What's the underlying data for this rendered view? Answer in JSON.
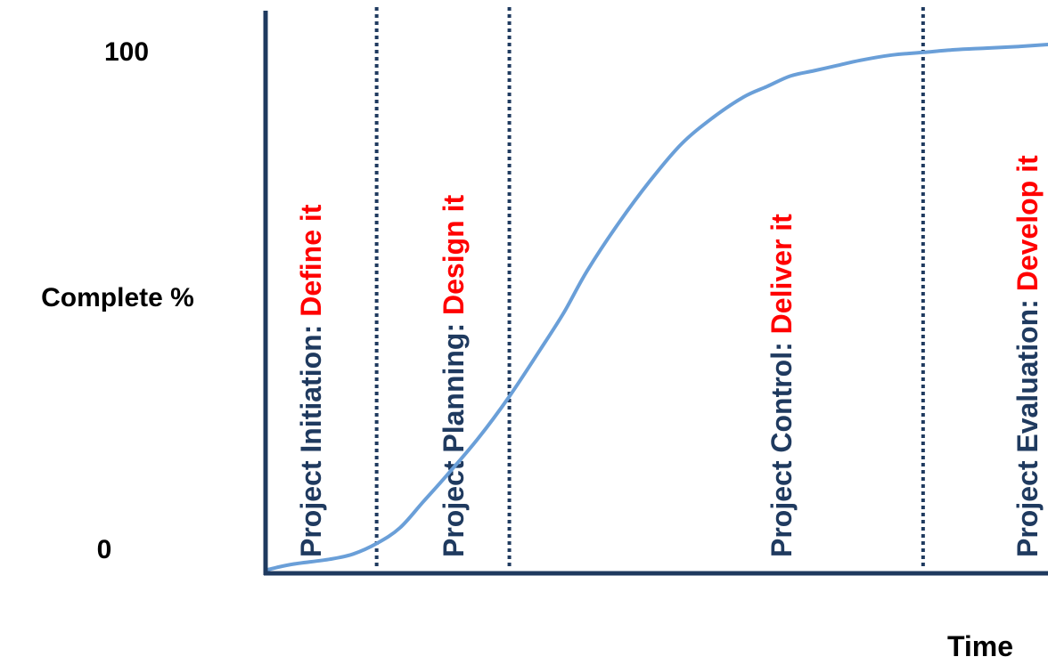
{
  "chart_data": {
    "type": "line",
    "ylabel": "Complete %",
    "xlabel": "Time",
    "y_ticks": [
      "0",
      "100"
    ],
    "ylim": [
      0,
      100
    ],
    "xlim": [
      0,
      100
    ],
    "grid": false,
    "colors": {
      "axis": "#1f3a5f",
      "divider": "#1f3a5f",
      "curve": "#6a9fd8",
      "phase_name": "#1f3a5f",
      "phase_action": "#ff0000"
    },
    "phases": [
      {
        "name": "Project Initiation:",
        "action": "Define it"
      },
      {
        "name": "Project Planning:",
        "action": "Design it"
      },
      {
        "name": "Project Control:",
        "action": "Deliver it"
      },
      {
        "name": "Project Evaluation:",
        "action": "Develop it"
      }
    ],
    "dividers_x": [
      14,
      31,
      84
    ],
    "series": [
      {
        "x": [
          0,
          3,
          8,
          11,
          14,
          17,
          20,
          23,
          27,
          31,
          35,
          38,
          41,
          45,
          49,
          53,
          57,
          61,
          64,
          67,
          70,
          73,
          76,
          80,
          84,
          88,
          92,
          96,
          100
        ],
        "y": [
          0,
          1,
          2,
          3,
          5,
          8,
          13,
          18,
          25,
          33,
          42,
          49,
          57,
          66,
          74,
          81,
          86,
          90,
          92,
          94,
          95,
          96,
          97,
          98,
          98.5,
          99,
          99.3,
          99.6,
          100
        ]
      }
    ]
  }
}
